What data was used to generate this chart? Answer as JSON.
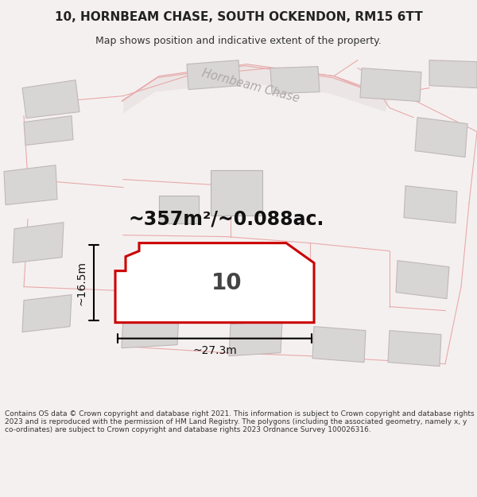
{
  "title_line1": "10, HORNBEAM CHASE, SOUTH OCKENDON, RM15 6TT",
  "title_line2": "Map shows position and indicative extent of the property.",
  "area_text": "~357m²/~0.088ac.",
  "number_label": "10",
  "width_label": "~27.3m",
  "height_label": "~16.5m",
  "footer_text": "Contains OS data © Crown copyright and database right 2021. This information is subject to Crown copyright and database rights 2023 and is reproduced with the permission of HM Land Registry. The polygons (including the associated geometry, namely x, y co-ordinates) are subject to Crown copyright and database rights 2023 Ordnance Survey 100026316.",
  "bg_color": "#f5f0f0",
  "map_bg": "#ffffff",
  "plot_fill": "#ffffff",
  "plot_stroke": "#cc0000",
  "building_fill": "#d8d5d5",
  "building_stroke": "#c0b8b8",
  "boundary_stroke": "#e8aaaa",
  "road_fill": "#ece5e5",
  "street_label": "Hornbeam Chase",
  "title_fontsize": 11,
  "subtitle_fontsize": 9,
  "footer_fontsize": 6.5,
  "area_fontsize": 17,
  "number_fontsize": 20,
  "dim_fontsize": 10
}
